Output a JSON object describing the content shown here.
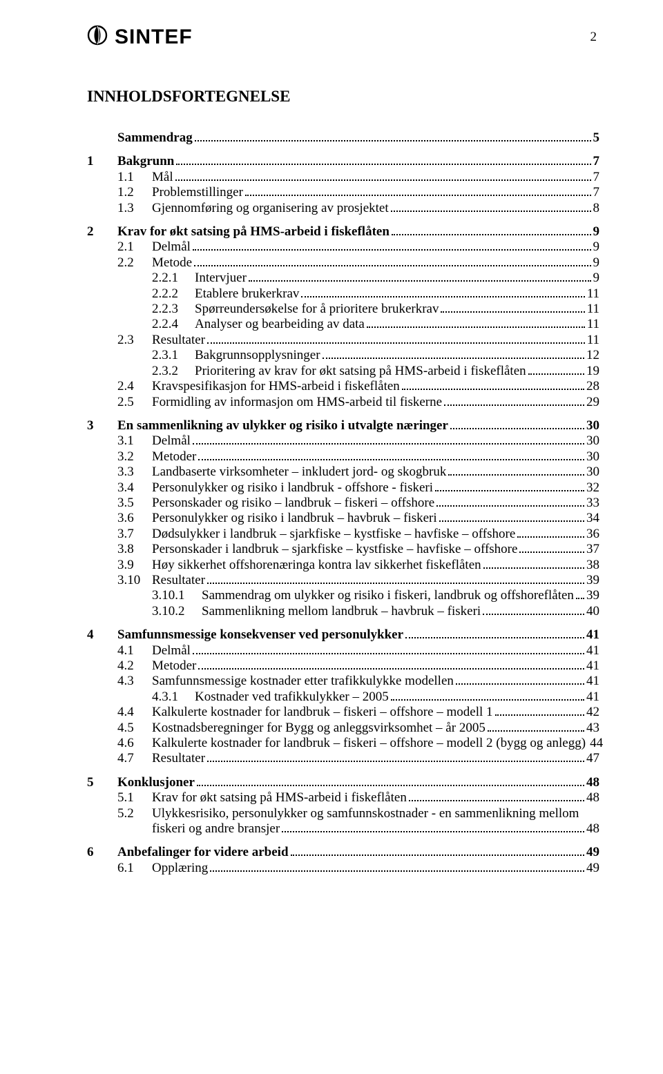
{
  "page": {
    "number": "2",
    "brand": "SINTEF",
    "title": "INNHOLDSFORTEGNELSE"
  },
  "toc": [
    {
      "level": 0,
      "num": "",
      "label": "Sammendrag",
      "page": "5"
    },
    {
      "level": 0,
      "num": "1",
      "label": "Bakgrunn",
      "page": "7"
    },
    {
      "level": 1,
      "num": "1.1",
      "label": "Mål",
      "page": "7"
    },
    {
      "level": 1,
      "num": "1.2",
      "label": "Problemstillinger",
      "page": "7"
    },
    {
      "level": 1,
      "num": "1.3",
      "label": "Gjennomføring og organisering av prosjektet",
      "page": "8"
    },
    {
      "level": 0,
      "num": "2",
      "label": "Krav for økt satsing på HMS-arbeid i fiskeflåten",
      "page": "9"
    },
    {
      "level": 1,
      "num": "2.1",
      "label": "Delmål",
      "page": "9"
    },
    {
      "level": 1,
      "num": "2.2",
      "label": "Metode",
      "page": "9"
    },
    {
      "level": 2,
      "num": "2.2.1",
      "label": "Intervjuer",
      "page": "9"
    },
    {
      "level": 2,
      "num": "2.2.2",
      "label": "Etablere brukerkrav",
      "page": "11"
    },
    {
      "level": 2,
      "num": "2.2.3",
      "label": "Spørreundersøkelse for å prioritere brukerkrav",
      "page": "11"
    },
    {
      "level": 2,
      "num": "2.2.4",
      "label": "Analyser og bearbeiding av data",
      "page": "11"
    },
    {
      "level": 1,
      "num": "2.3",
      "label": "Resultater",
      "page": "11"
    },
    {
      "level": 2,
      "num": "2.3.1",
      "label": "Bakgrunnsopplysninger",
      "page": "12"
    },
    {
      "level": 2,
      "num": "2.3.2",
      "label": "Prioritering av krav for økt satsing på HMS-arbeid i fiskeflåten",
      "page": "19"
    },
    {
      "level": 1,
      "num": "2.4",
      "label": "Kravspesifikasjon for HMS-arbeid i fiskeflåten",
      "page": "28"
    },
    {
      "level": 1,
      "num": "2.5",
      "label": "Formidling av informasjon om HMS-arbeid til fiskerne",
      "page": "29"
    },
    {
      "level": 0,
      "num": "3",
      "label": "En sammenlikning av ulykker og risiko i utvalgte næringer",
      "page": "30"
    },
    {
      "level": 1,
      "num": "3.1",
      "label": "Delmål",
      "page": "30"
    },
    {
      "level": 1,
      "num": "3.2",
      "label": "Metoder",
      "page": "30"
    },
    {
      "level": 1,
      "num": "3.3",
      "label": "Landbaserte virksomheter – inkludert jord- og skogbruk",
      "page": "30"
    },
    {
      "level": 1,
      "num": "3.4",
      "label": "Personulykker og risiko i landbruk - offshore - fiskeri",
      "page": "32"
    },
    {
      "level": 1,
      "num": "3.5",
      "label": "Personskader og risiko – landbruk – fiskeri – offshore",
      "page": "33"
    },
    {
      "level": 1,
      "num": "3.6",
      "label": "Personulykker og risiko i landbruk – havbruk – fiskeri",
      "page": "34"
    },
    {
      "level": 1,
      "num": "3.7",
      "label": "Dødsulykker i landbruk – sjarkfiske – kystfiske – havfiske – offshore",
      "page": "36"
    },
    {
      "level": 1,
      "num": "3.8",
      "label": "Personskader i landbruk – sjarkfiske – kystfiske – havfiske – offshore",
      "page": "37"
    },
    {
      "level": 1,
      "num": "3.9",
      "label": "Høy sikkerhet offshorenæringa kontra lav sikkerhet fiskeflåten",
      "page": "38"
    },
    {
      "level": 1,
      "num": "3.10",
      "label": "Resultater",
      "page": "39"
    },
    {
      "level": 3,
      "num": "3.10.1",
      "label": "Sammendrag om ulykker og risiko i fiskeri, landbruk og offshoreflåten",
      "page": "39"
    },
    {
      "level": 3,
      "num": "3.10.2",
      "label": "Sammenlikning mellom landbruk – havbruk – fiskeri",
      "page": "40"
    },
    {
      "level": 0,
      "num": "4",
      "label": "Samfunnsmessige konsekvenser ved personulykker",
      "page": "41"
    },
    {
      "level": 1,
      "num": "4.1",
      "label": "Delmål",
      "page": "41"
    },
    {
      "level": 1,
      "num": "4.2",
      "label": "Metoder",
      "page": "41"
    },
    {
      "level": 1,
      "num": "4.3",
      "label": "Samfunnsmessige kostnader etter trafikkulykke modellen",
      "page": "41"
    },
    {
      "level": 2,
      "num": "4.3.1",
      "label": "Kostnader ved trafikkulykker – 2005",
      "page": "41"
    },
    {
      "level": 1,
      "num": "4.4",
      "label": "Kalkulerte kostnader for landbruk – fiskeri – offshore – modell 1",
      "page": "42"
    },
    {
      "level": 1,
      "num": "4.5",
      "label": "Kostnadsberegninger for Bygg og anleggsvirksomhet – år 2005",
      "page": "43"
    },
    {
      "level": 1,
      "num": "4.6",
      "label": "Kalkulerte kostnader for landbruk – fiskeri – offshore – modell 2 (bygg og anlegg)",
      "page": "44"
    },
    {
      "level": 1,
      "num": "4.7",
      "label": "Resultater",
      "page": "47"
    },
    {
      "level": 0,
      "num": "5",
      "label": "Konklusjoner",
      "page": "48"
    },
    {
      "level": 1,
      "num": "5.1",
      "label": "Krav for økt satsing på HMS-arbeid i fiskeflåten",
      "page": "48"
    },
    {
      "level": 1,
      "num": "5.2",
      "label": "Ulykkesrisiko, personulykker og samfunnskostnader - en sammenlikning mellom fiskeri og andre bransjer",
      "page": "48",
      "wrap": true
    },
    {
      "level": 0,
      "num": "6",
      "label": "Anbefalinger for videre arbeid",
      "page": "49"
    },
    {
      "level": 1,
      "num": "6.1",
      "label": "Opplæring",
      "page": "49"
    }
  ]
}
